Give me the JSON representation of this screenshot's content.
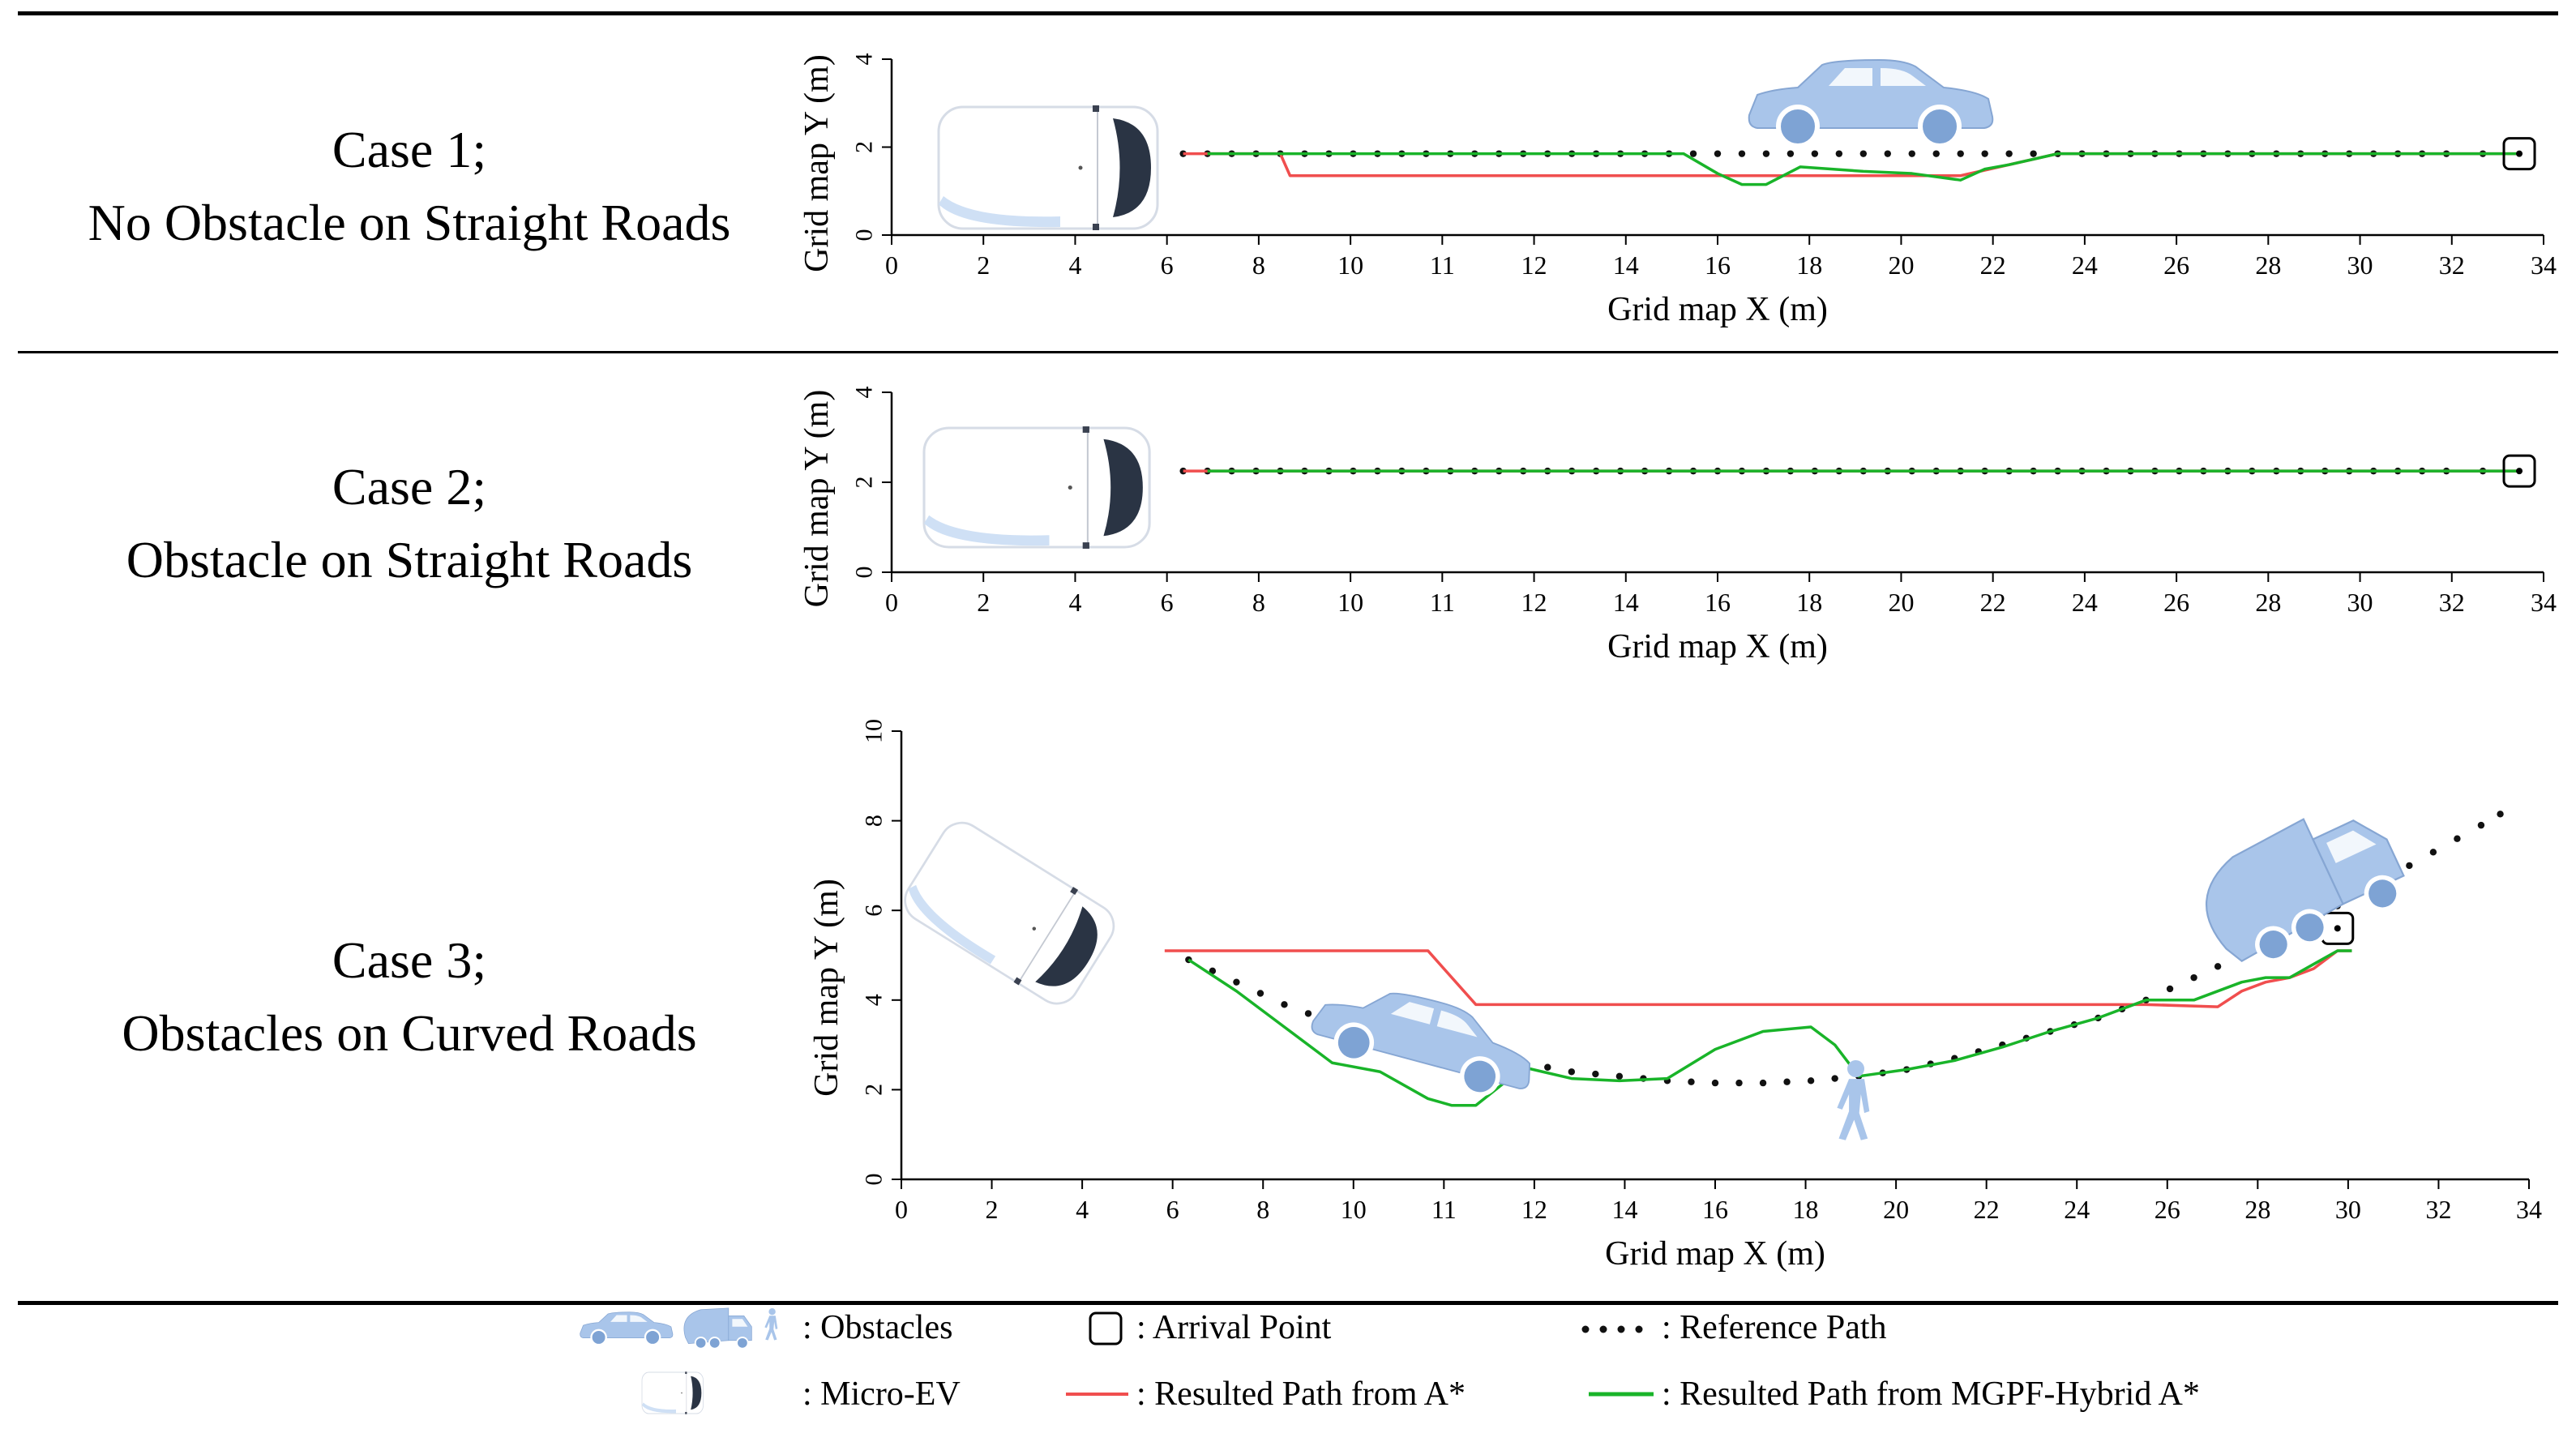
{
  "cases": [
    {
      "line1": "Case 1;",
      "line2": "No Obstacle on Straight Roads"
    },
    {
      "line1": "Case 2;",
      "line2": "Obstacle on Straight Roads"
    },
    {
      "line1": "Case 3;",
      "line2": "Obstacles on Curved Roads"
    }
  ],
  "legend": {
    "obstacles": ": Obstacles",
    "micro_ev": ": Micro-EV",
    "arrival": ": Arrival Point",
    "astar": ": Resulted Path from A*",
    "reference": ": Reference Path",
    "mgpf": ": Resulted Path from MGPF-Hybrid A*"
  },
  "colors": {
    "astar": "#f04e4e",
    "mgpf": "#19b429",
    "reference": "#111111",
    "obstacle": "#a9c5ea",
    "obstacle_dark": "#7ea3d4"
  },
  "chart_data": [
    {
      "type": "line",
      "title": "Case 1; No Obstacle on Straight Roads",
      "xlabel": "Grid map X (m)",
      "ylabel": "Grid map Y (m)",
      "xlim": [
        0,
        34
      ],
      "ylim": [
        0,
        4
      ],
      "xticks": [
        "0",
        "2",
        "4",
        "6",
        "8",
        "10",
        "11",
        "12",
        "14",
        "16",
        "18",
        "20",
        "22",
        "24",
        "26",
        "28",
        "30",
        "32",
        "34"
      ],
      "yticks": [
        "0",
        "2",
        "4"
      ],
      "arrival": [
        33.5,
        1.85
      ],
      "series": [
        {
          "name": "Reference Path",
          "style": "dots",
          "x": [
            6,
            7,
            8,
            9,
            10,
            11,
            12,
            13,
            14,
            15,
            16,
            17,
            18,
            19,
            20,
            21,
            22,
            23,
            24,
            25,
            26,
            27,
            28,
            29,
            30,
            31,
            32,
            33.5
          ],
          "y": [
            1.85,
            1.85,
            1.85,
            1.85,
            1.85,
            1.85,
            1.85,
            1.85,
            1.85,
            1.85,
            1.85,
            1.85,
            1.85,
            1.85,
            1.85,
            1.85,
            1.85,
            1.85,
            1.85,
            1.85,
            1.85,
            1.85,
            1.85,
            1.85,
            1.85,
            1.85,
            1.85,
            1.85
          ]
        },
        {
          "name": "Resulted Path from A*",
          "style": "red",
          "x": [
            6,
            8,
            8.2,
            22,
            24,
            33.5
          ],
          "y": [
            1.85,
            1.85,
            1.35,
            1.35,
            1.85,
            1.85
          ]
        },
        {
          "name": "Resulted Path from MGPF-Hybrid A*",
          "style": "green",
          "x": [
            6.5,
            16.3,
            17,
            17.5,
            18,
            18.7,
            20,
            21,
            22,
            22.5,
            23,
            24,
            33.5
          ],
          "y": [
            1.85,
            1.85,
            1.4,
            1.15,
            1.15,
            1.55,
            1.45,
            1.4,
            1.25,
            1.5,
            1.6,
            1.85,
            1.85
          ]
        }
      ]
    },
    {
      "type": "line",
      "title": "Case 2; Obstacle on Straight Roads",
      "xlabel": "Grid map X (m)",
      "ylabel": "Grid map Y (m)",
      "xlim": [
        0,
        34
      ],
      "ylim": [
        0,
        4
      ],
      "xticks": [
        "0",
        "2",
        "4",
        "6",
        "8",
        "10",
        "11",
        "12",
        "14",
        "16",
        "18",
        "20",
        "22",
        "24",
        "26",
        "28",
        "30",
        "32",
        "34"
      ],
      "yticks": [
        "0",
        "2",
        "4"
      ],
      "arrival": [
        33.5,
        2.25
      ],
      "series": [
        {
          "name": "Reference Path",
          "style": "dots",
          "x": [
            6,
            7,
            8,
            9,
            10,
            11,
            12,
            13,
            14,
            15,
            16,
            17,
            18,
            19,
            20,
            21,
            22,
            23,
            24,
            25,
            26,
            27,
            28,
            29,
            30,
            31,
            32,
            33.5
          ],
          "y": [
            2.25,
            2.25,
            2.25,
            2.25,
            2.25,
            2.25,
            2.25,
            2.25,
            2.25,
            2.25,
            2.25,
            2.25,
            2.25,
            2.25,
            2.25,
            2.25,
            2.25,
            2.25,
            2.25,
            2.25,
            2.25,
            2.25,
            2.25,
            2.25,
            2.25,
            2.25,
            2.25,
            2.25
          ]
        },
        {
          "name": "Resulted Path from A*",
          "style": "red",
          "x": [
            6,
            33.5
          ],
          "y": [
            2.25,
            2.25
          ]
        },
        {
          "name": "Resulted Path from MGPF-Hybrid A*",
          "style": "green",
          "x": [
            6.5,
            33.5
          ],
          "y": [
            2.25,
            2.25
          ]
        }
      ]
    },
    {
      "type": "line",
      "title": "Case 3; Obstacles on Curved Roads",
      "xlabel": "Grid map X (m)",
      "ylabel": "Grid map Y (m)",
      "xlim": [
        0,
        34
      ],
      "ylim": [
        0,
        10
      ],
      "xticks": [
        "0",
        "2",
        "4",
        "6",
        "8",
        "10",
        "11",
        "12",
        "14",
        "16",
        "18",
        "20",
        "22",
        "24",
        "26",
        "28",
        "30",
        "32",
        "34"
      ],
      "yticks": [
        "0",
        "2",
        "4",
        "6",
        "8",
        "10"
      ],
      "arrival": [
        30,
        5.6
      ],
      "series": [
        {
          "name": "Reference Path",
          "style": "dots",
          "x": [
            6,
            7,
            8,
            9,
            10,
            11,
            12,
            13,
            14,
            15,
            16,
            17,
            18,
            19,
            20,
            21,
            22,
            23,
            24,
            25,
            26,
            27,
            28,
            29,
            30,
            31,
            32,
            33,
            33.8
          ],
          "y": [
            4.9,
            4.4,
            3.9,
            3.5,
            3.2,
            3.0,
            2.8,
            2.6,
            2.4,
            2.3,
            2.2,
            2.15,
            2.15,
            2.2,
            2.3,
            2.45,
            2.7,
            3.0,
            3.3,
            3.6,
            4.0,
            4.5,
            5.0,
            5.6,
            6.1,
            6.7,
            7.3,
            7.9,
            8.4
          ]
        },
        {
          "name": "Resulted Path from A*",
          "style": "red",
          "x": [
            5.5,
            11,
            12,
            26,
            27.5,
            28,
            28.5,
            29,
            29.5,
            30,
            30.3
          ],
          "y": [
            5.1,
            5.1,
            3.9,
            3.9,
            3.85,
            4.2,
            4.4,
            4.5,
            4.7,
            5.1,
            5.1
          ]
        },
        {
          "name": "Resulted Path from MGPF-Hybrid A*",
          "style": "green",
          "x": [
            6,
            7,
            8,
            9,
            10,
            11,
            11.5,
            12,
            13,
            14,
            15,
            16,
            17,
            18,
            19,
            19.5,
            20,
            21,
            22,
            23,
            24,
            25,
            26,
            27,
            28,
            28.5,
            29,
            29.5,
            30,
            30.3
          ],
          "y": [
            4.9,
            4.2,
            3.4,
            2.6,
            2.4,
            1.8,
            1.65,
            1.65,
            2.5,
            2.25,
            2.2,
            2.25,
            2.9,
            3.3,
            3.4,
            3.0,
            2.3,
            2.45,
            2.65,
            2.95,
            3.3,
            3.6,
            4.0,
            4.0,
            4.4,
            4.5,
            4.5,
            4.8,
            5.1,
            5.1
          ]
        }
      ]
    }
  ]
}
